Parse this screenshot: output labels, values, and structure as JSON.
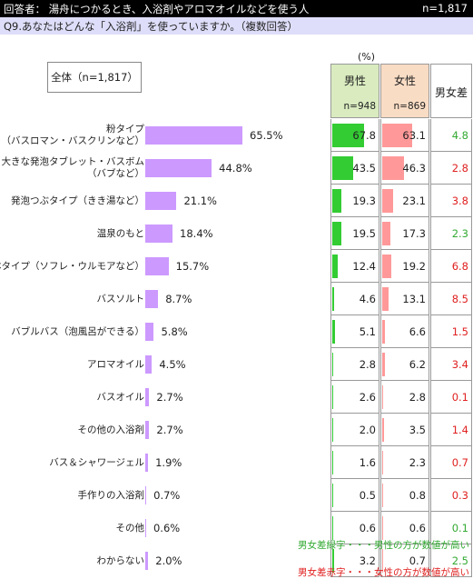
{
  "header": {
    "respondents": "回答者： 湯舟につかるとき、入浴剤やアロマオイルなどを使う人",
    "n": "n=1,817"
  },
  "question": "Q9.あなたはどんな「入浴剤」を使っていますか。（複数回答）",
  "total_box": "全体（n=1,817）",
  "unit": "(%)",
  "table_header": {
    "male": "男性",
    "male_n": "n=948",
    "female": "女性",
    "female_n": "n=869",
    "diff": "男女差"
  },
  "colors": {
    "bar": "#cc99ff",
    "male": "#33cc33",
    "female": "#ff9999",
    "diff_green": "#33aa33",
    "diff_red": "#e02020"
  },
  "notes": {
    "green": "男女差緑字・・・男性の方が数値が高い",
    "red": "男女差赤字・・・女性の方が数値が高い"
  },
  "chart_data": {
    "type": "bar",
    "orientation": "horizontal",
    "categories": [
      "粉タイプ\n（バスロマン・バスクリンなど）",
      "大きな発泡タブレット・バスボム\n（バブなど）",
      "発泡つぶタイプ（きき湯など）",
      "温泉のもと",
      "液体タイプ（ソフレ・ウルモアなど）",
      "バスソルト",
      "バブルバス（泡風呂ができる）",
      "アロマオイル",
      "バスオイル",
      "その他の入浴剤",
      "バス＆シャワージェル",
      "手作りの入浴剤",
      "その他",
      "わからない"
    ],
    "values": [
      65.5,
      44.8,
      21.1,
      18.4,
      15.7,
      8.7,
      5.8,
      4.5,
      2.7,
      2.7,
      1.9,
      0.7,
      0.6,
      2.0
    ],
    "value_labels": [
      "65.5%",
      "44.8%",
      "21.1%",
      "18.4%",
      "15.7%",
      "8.7%",
      "5.8%",
      "4.5%",
      "2.7%",
      "2.7%",
      "1.9%",
      "0.7%",
      "0.6%",
      "2.0%"
    ],
    "male": [
      "67.8",
      "43.5",
      "19.3",
      "19.5",
      "12.4",
      "4.6",
      "5.1",
      "2.8",
      "2.6",
      "2.0",
      "1.6",
      "0.5",
      "0.6",
      "3.2"
    ],
    "female": [
      "63.1",
      "46.3",
      "23.1",
      "17.3",
      "19.2",
      "13.1",
      "6.6",
      "6.2",
      "2.8",
      "3.5",
      "2.3",
      "0.8",
      "0.6",
      "0.7"
    ],
    "diff": [
      "4.8",
      "2.8",
      "3.8",
      "2.3",
      "6.8",
      "8.5",
      "1.5",
      "3.4",
      "0.1",
      "1.4",
      "0.7",
      "0.3",
      "0.1",
      "2.5"
    ],
    "diff_color": [
      "green",
      "red",
      "red",
      "green",
      "red",
      "red",
      "red",
      "red",
      "red",
      "red",
      "red",
      "red",
      "green",
      "green"
    ]
  }
}
